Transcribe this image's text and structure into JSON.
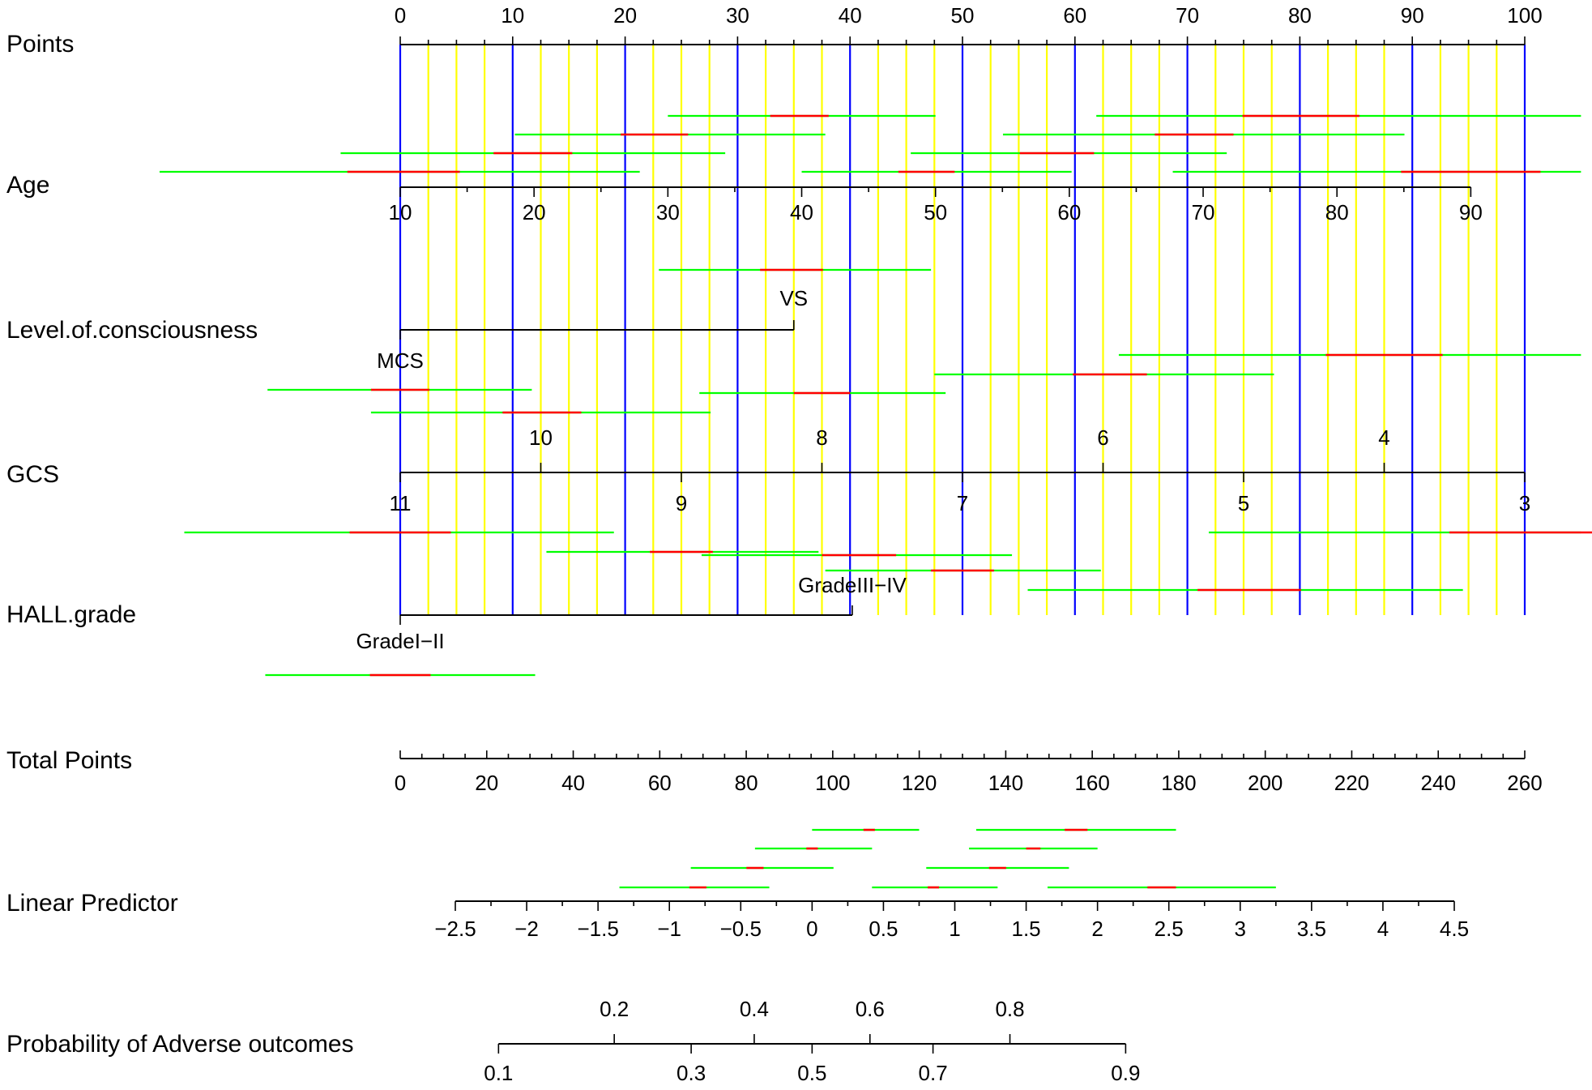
{
  "chart_data": {
    "type": "nomogram",
    "title": "",
    "rows": [
      {
        "key": "points",
        "label": "Points",
        "ticks": [
          0,
          10,
          20,
          30,
          40,
          50,
          60,
          70,
          80,
          90,
          100
        ]
      },
      {
        "key": "age",
        "label": "Age",
        "ticks": [
          10,
          20,
          30,
          40,
          50,
          60,
          70,
          80,
          90
        ],
        "tick_points": [
          0,
          11.9,
          23.8,
          35.7,
          47.6,
          59.5,
          71.4,
          83.3,
          95.2
        ]
      },
      {
        "key": "consciousness",
        "label": "Level.of.consciousness",
        "levels": [
          {
            "name": "MCS",
            "points": 0
          },
          {
            "name": "VS",
            "points": 35
          }
        ]
      },
      {
        "key": "gcs",
        "label": "GCS",
        "ticks_above": [
          "10",
          "8",
          "6",
          "4"
        ],
        "ticks_above_points": [
          12.5,
          37.5,
          62.5,
          87.5
        ],
        "ticks_below": [
          "11",
          "9",
          "7",
          "5",
          "3"
        ],
        "ticks_below_points": [
          0,
          25,
          50,
          75,
          100
        ]
      },
      {
        "key": "hall",
        "label": "HALL.grade",
        "levels": [
          {
            "name": "GradeI−II",
            "points": 0
          },
          {
            "name": "GradeIII−IV",
            "points": 40.2
          }
        ]
      },
      {
        "key": "total",
        "label": "Total Points",
        "ticks": [
          0,
          20,
          40,
          60,
          80,
          100,
          120,
          140,
          160,
          180,
          200,
          220,
          240,
          260
        ],
        "range": [
          0,
          260
        ]
      },
      {
        "key": "lp",
        "label": "Linear Predictor",
        "ticks": [
          "−2.5",
          "−2",
          "−1.5",
          "−1",
          "−0.5",
          "0",
          "0.5",
          "1",
          "1.5",
          "2",
          "2.5",
          "3",
          "3.5",
          "4",
          "4.5"
        ],
        "range": [
          -2.5,
          4.5
        ]
      },
      {
        "key": "prob",
        "label": "Probability of Adverse outcomes",
        "ticks_above": [
          "0.2",
          "0.4",
          "0.6",
          "0.8"
        ],
        "ticks_below": [
          "0.1",
          "0.3",
          "0.5",
          "0.7",
          "0.9"
        ]
      }
    ],
    "intervals": {
      "age": [
        {
          "center": 35.5,
          "half": 2.6,
          "lo": 23.8,
          "hi": 47.6
        },
        {
          "center": 80.1,
          "half": 5.2,
          "lo": 61.9,
          "hi": 105.0
        },
        {
          "center": 22.6,
          "half": 3.0,
          "lo": 10.2,
          "hi": 37.8
        },
        {
          "center": 70.6,
          "half": 3.5,
          "lo": 53.6,
          "hi": 89.3
        },
        {
          "center": 11.8,
          "half": 3.5,
          "lo": -5.3,
          "hi": 28.9
        },
        {
          "center": 58.4,
          "half": 3.3,
          "lo": 45.4,
          "hi": 73.5
        },
        {
          "center": 0.3,
          "half": 5.0,
          "lo": -21.4,
          "hi": 21.3
        },
        {
          "center": 46.8,
          "half": 2.5,
          "lo": 35.7,
          "hi": 59.7
        },
        {
          "center": 95.2,
          "half": 6.2,
          "lo": 68.7,
          "hi": 105.0
        }
      ],
      "consciousness": [
        {
          "center": 34.8,
          "half": 2.8,
          "lo": 23.0,
          "hi": 47.2
        }
      ],
      "gcs_upper": [
        {
          "center": 87.5,
          "half": 5.2,
          "lo": 63.9,
          "hi": 105.0
        },
        {
          "center": 63.1,
          "half": 3.3,
          "lo": 47.5,
          "hi": 77.7
        },
        {
          "center": 0.0,
          "half": 2.6,
          "lo": -11.8,
          "hi": 11.7
        },
        {
          "center": 37.5,
          "half": 2.5,
          "lo": 26.6,
          "hi": 48.5
        },
        {
          "center": 12.6,
          "half": 3.5,
          "lo": -2.6,
          "hi": 27.6
        }
      ],
      "gcs_lower": [
        {
          "center": 0.0,
          "half": 4.5,
          "lo": -19.2,
          "hi": 19.0
        },
        {
          "center": 100.0,
          "half": 6.7,
          "lo": 71.9,
          "hi": 105.0
        },
        {
          "center": 25.0,
          "half": 2.8,
          "lo": 13.0,
          "hi": 37.2
        },
        {
          "center": 40.8,
          "half": 3.3,
          "lo": 26.8,
          "hi": 54.4
        },
        {
          "center": 50.0,
          "half": 2.8,
          "lo": 37.8,
          "hi": 62.3
        },
        {
          "center": 75.5,
          "half": 4.6,
          "lo": 55.8,
          "hi": 94.5
        }
      ],
      "hall": [
        {
          "center": 0.0,
          "half": 2.7,
          "lo": -12.0,
          "hi": 12.0
        }
      ],
      "lp": [
        {
          "center": 0.4,
          "half": 0.04,
          "lo": 0.0,
          "hi": 0.75
        },
        {
          "center": 1.85,
          "half": 0.08,
          "lo": 1.15,
          "hi": 2.55
        },
        {
          "center": 0.0,
          "half": 0.04,
          "lo": -0.4,
          "hi": 0.42
        },
        {
          "center": 1.55,
          "half": 0.05,
          "lo": 1.1,
          "hi": 2.0
        },
        {
          "center": -0.4,
          "half": 0.06,
          "lo": -0.85,
          "hi": 0.15
        },
        {
          "center": 1.3,
          "half": 0.06,
          "lo": 0.8,
          "hi": 1.8
        },
        {
          "center": -0.8,
          "half": 0.06,
          "lo": -1.35,
          "hi": -0.3
        },
        {
          "center": 0.85,
          "half": 0.04,
          "lo": 0.42,
          "hi": 1.3
        },
        {
          "center": 2.45,
          "half": 0.1,
          "lo": 1.65,
          "hi": 3.25
        }
      ]
    },
    "colors": {
      "axis": "#000000",
      "major_grid": "#0000ff",
      "minor_grid": "#ffff00",
      "interval": "#00ff00",
      "interval_center": "#ff0000"
    }
  }
}
